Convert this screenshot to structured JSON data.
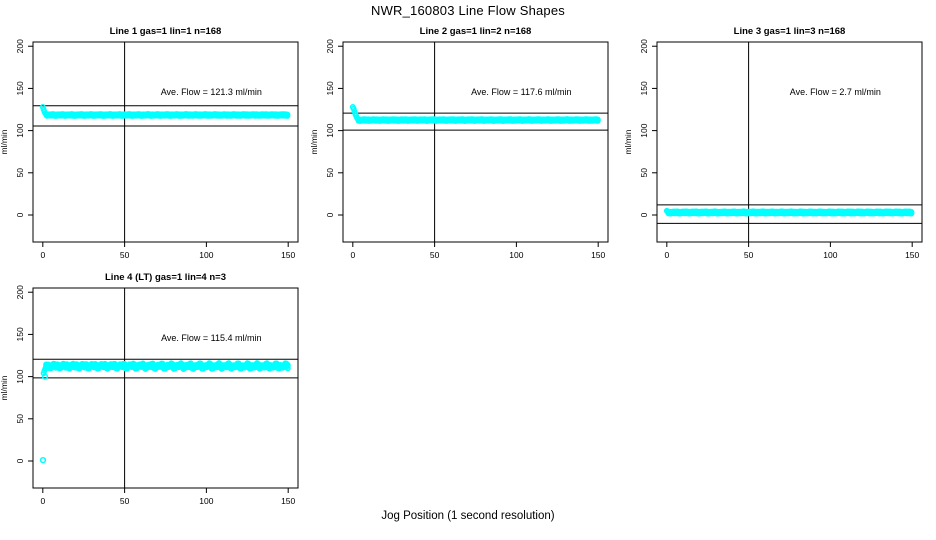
{
  "title": "NWR_160803  Line Flow Shapes",
  "xlabel": "Jog Position (1 second resolution)",
  "colors": {
    "points": "#00FFFF",
    "axis": "#000000",
    "background": "#FFFFFF"
  },
  "chart_data": {
    "type": "scatter",
    "title": "NWR_160803  Line Flow Shapes",
    "xlabel": "Jog Position (1 second resolution)",
    "ylabel": "ml/min",
    "xlim": [
      0,
      150
    ],
    "ylim": [
      0,
      200
    ],
    "x_ticks": [
      0,
      50,
      100,
      150
    ],
    "y_ticks": [
      0,
      50,
      100,
      150,
      200
    ],
    "grid": false,
    "vline_x": 50,
    "panels": [
      {
        "title": "Line 1 gas=1 lin=1 n=168",
        "annotation": "Ave. Flow =  121.3  ml/min",
        "ave_flow": 121.3,
        "n": 168,
        "grid_pos": [
          0,
          0
        ],
        "steady_value": 118.5,
        "noise_amp": 0.3,
        "trace_offsets": [
          0,
          0.8,
          -0.8
        ],
        "initial_points": [
          [
            0,
            128
          ],
          [
            0.5,
            125
          ],
          [
            1,
            122.5
          ],
          [
            1.5,
            120.5
          ],
          [
            2,
            119.3
          ]
        ],
        "extra_points": [],
        "upper_line": 129.5,
        "lower_line": 105.5
      },
      {
        "title": "Line 2 gas=1 lin=2 n=168",
        "annotation": "Ave. Flow =  117.6  ml/min",
        "ave_flow": 117.6,
        "n": 168,
        "grid_pos": [
          0,
          1
        ],
        "steady_value": 112.5,
        "noise_amp": 0.3,
        "trace_offsets": [
          0,
          0.8,
          -0.8
        ],
        "initial_points": [
          [
            0,
            128
          ],
          [
            0.5,
            126
          ],
          [
            1,
            123
          ],
          [
            1.5,
            120
          ],
          [
            2,
            117.5
          ],
          [
            2.5,
            115.5
          ],
          [
            3,
            114
          ]
        ],
        "extra_points": [],
        "upper_line": 120.7,
        "lower_line": 100.6
      },
      {
        "title": "Line 3 gas=1 lin=3 n=168",
        "annotation": "Ave. Flow =  2.7  ml/min",
        "ave_flow": 2.7,
        "n": 168,
        "grid_pos": [
          0,
          2
        ],
        "steady_value": 3,
        "noise_amp": 0.3,
        "trace_offsets": [
          0,
          1.0,
          -1.0
        ],
        "initial_points": [
          [
            0,
            5
          ],
          [
            0.5,
            4
          ]
        ],
        "extra_points": [],
        "upper_line": 12,
        "lower_line": -10
      },
      {
        "title": "Line 4 (LT) gas=1 lin=4 n=3",
        "annotation": "Ave. Flow =  115.4  ml/min",
        "ave_flow": 115.4,
        "n": 3,
        "grid_pos": [
          1,
          0
        ],
        "steady_value": 112.5,
        "noise_amp": 2.0,
        "trace_offsets": [
          0,
          1.5,
          -1.5
        ],
        "initial_points": [
          [
            0.5,
            104
          ],
          [
            1,
            107
          ],
          [
            1.5,
            109.5
          ]
        ],
        "extra_points": [
          [
            0.1,
            1
          ],
          [
            1.3,
            100
          ]
        ],
        "upper_line": 120.5,
        "lower_line": 98.5
      }
    ]
  }
}
